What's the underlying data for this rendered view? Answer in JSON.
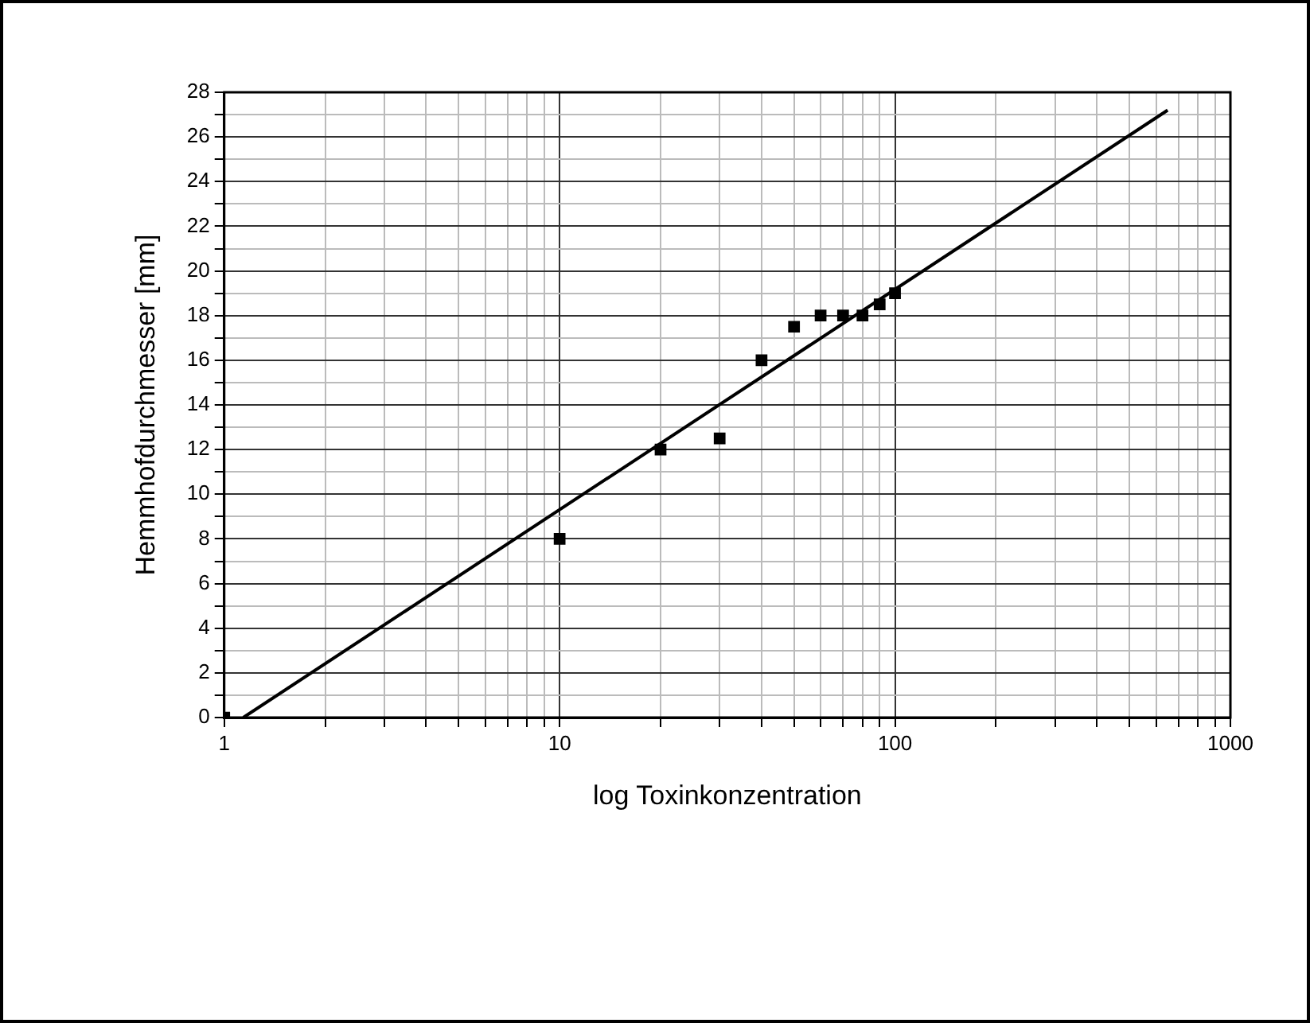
{
  "chart_data": {
    "type": "scatter",
    "xlabel": "log Toxinkonzentration",
    "ylabel": "Hemmhofdurchmesser [mm]",
    "log": "x",
    "grid": true,
    "legend": false,
    "marker": "square",
    "series": [
      {
        "color": "#000000",
        "x": [
          1,
          10,
          20,
          30,
          40,
          50,
          60,
          70,
          80,
          90,
          100
        ],
        "values": [
          0,
          8,
          12,
          12.5,
          16,
          17.5,
          18,
          18,
          18,
          18.5,
          19
        ]
      },
      {
        "type": "line",
        "color": "#000000",
        "marker": "none",
        "x": [
          1.14,
          650
        ],
        "values": [
          0,
          27.2
        ]
      }
    ],
    "xlim": [
      1,
      1000
    ],
    "xticks": [
      1,
      {
        "value": 2,
        "label": null
      },
      {
        "value": 3,
        "label": null
      },
      {
        "value": 4,
        "label": null
      },
      {
        "value": 5,
        "label": null
      },
      {
        "value": 6,
        "label": null
      },
      {
        "value": 7,
        "label": null
      },
      {
        "value": 8,
        "label": null
      },
      {
        "value": 9,
        "label": null
      },
      10,
      {
        "value": 20,
        "label": null
      },
      {
        "value": 30,
        "label": null
      },
      {
        "value": 40,
        "label": null
      },
      {
        "value": 50,
        "label": null
      },
      {
        "value": 60,
        "label": null
      },
      {
        "value": 70,
        "label": null
      },
      {
        "value": 80,
        "label": null
      },
      {
        "value": 90,
        "label": null
      },
      100,
      {
        "value": 200,
        "label": null
      },
      {
        "value": 300,
        "label": null
      },
      {
        "value": 400,
        "label": null
      },
      {
        "value": 500,
        "label": null
      },
      {
        "value": 600,
        "label": null
      },
      {
        "value": 700,
        "label": null
      },
      {
        "value": 800,
        "label": null
      },
      {
        "value": 900,
        "label": null
      },
      1000
    ],
    "ylim": [
      0,
      28
    ],
    "yticks": [
      0,
      {
        "value": 1,
        "label": null
      },
      2,
      {
        "value": 3,
        "label": null
      },
      4,
      {
        "value": 5,
        "label": null
      },
      6,
      {
        "value": 7,
        "label": null
      },
      8,
      {
        "value": 9,
        "label": null
      },
      10,
      {
        "value": 11,
        "label": null
      },
      12,
      {
        "value": 13,
        "label": null
      },
      14,
      {
        "value": 15,
        "label": null
      },
      16,
      {
        "value": 17,
        "label": null
      },
      18,
      {
        "value": 19,
        "label": null
      },
      20,
      {
        "value": 21,
        "label": null
      },
      22,
      {
        "value": 23,
        "label": null
      },
      24,
      {
        "value": 25,
        "label": null
      },
      26,
      {
        "value": 27,
        "label": null
      },
      28
    ]
  }
}
